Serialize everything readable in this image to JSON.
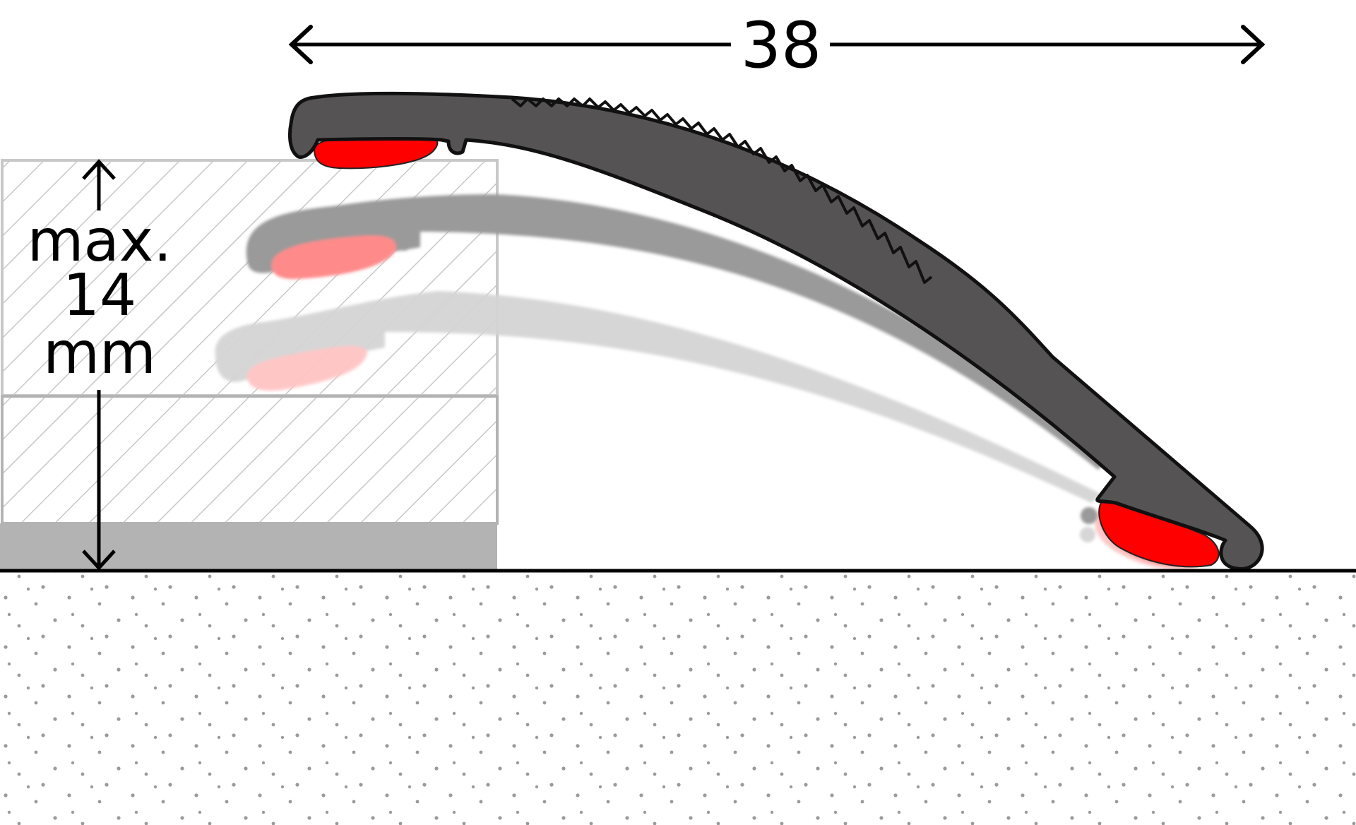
{
  "dimensions": {
    "width_value": "38",
    "height_line1": "max.",
    "height_line2": "14",
    "height_line3": "mm"
  },
  "colors": {
    "profile_dark": "#555354",
    "profile_mid": "#9a9a9a",
    "profile_light": "#d4d4d4",
    "adhesive": "#ff0000",
    "adhesive_mid": "#ff8a8a",
    "adhesive_light": "#ffc4c4",
    "floor_base": "#b3b3b3",
    "hatch_stroke": "#c8c8c8",
    "subfloor_dots": "#9a9a9a"
  }
}
